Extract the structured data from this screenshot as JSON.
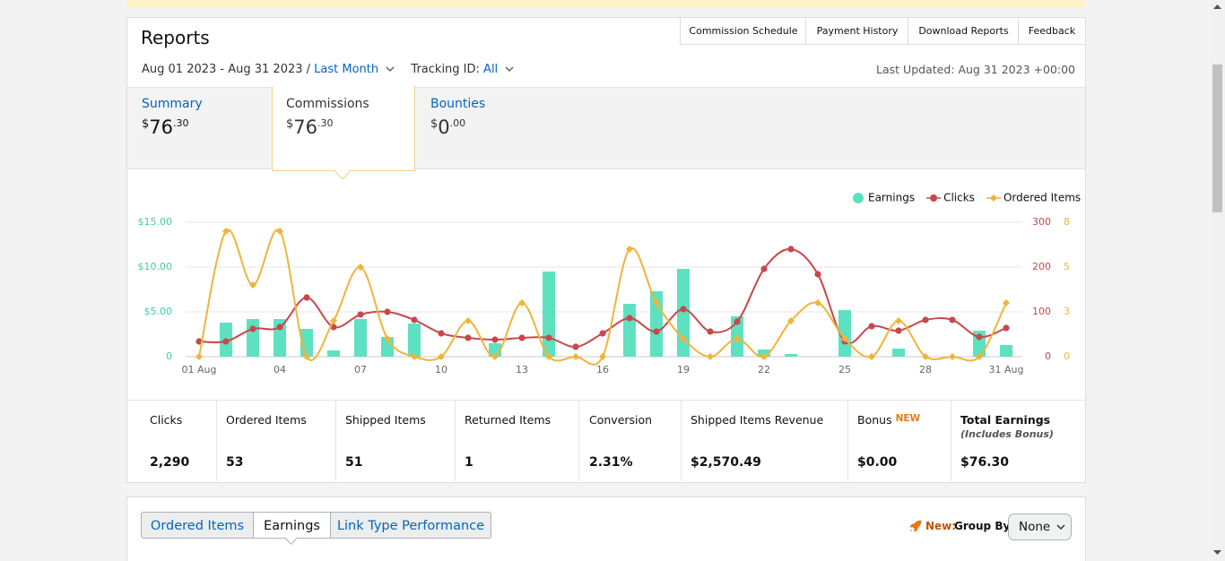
{
  "header": {
    "title": "Reports",
    "buttons": [
      "Commission Schedule",
      "Payment History",
      "Download Reports",
      "Feedback"
    ]
  },
  "filters": {
    "date_range": "Aug 01 2023 - Aug 31 2023 /",
    "period": "Last Month",
    "tracking_label": "Tracking ID:",
    "tracking_value": "All",
    "last_updated": "Last Updated: Aug 31 2023 +00:00"
  },
  "tabs": [
    {
      "name": "Summary",
      "currency": "$",
      "whole": "76",
      "cents": ".30"
    },
    {
      "name": "Commissions",
      "currency": "$",
      "whole": "76",
      "cents": ".30"
    },
    {
      "name": "Bounties",
      "currency": "$",
      "whole": "0",
      "cents": ".00"
    }
  ],
  "chart_data": {
    "type": "combo",
    "categories": [
      "01 Aug",
      null,
      null,
      "04",
      null,
      null,
      "07",
      null,
      null,
      "10",
      null,
      null,
      "13",
      null,
      null,
      "16",
      null,
      null,
      "19",
      null,
      null,
      "22",
      null,
      null,
      "25",
      null,
      null,
      "28",
      null,
      null,
      "31 Aug"
    ],
    "series": [
      {
        "name": "Earnings",
        "type": "bar",
        "color": "#5ee1c1",
        "axis": "y",
        "values": [
          0,
          3.8,
          4.2,
          4.2,
          3.1,
          0.7,
          4.2,
          2.2,
          3.7,
          0,
          0,
          1.5,
          0,
          9.5,
          0,
          0,
          5.9,
          7.3,
          9.8,
          0,
          4.5,
          0.8,
          0.3,
          0,
          5.2,
          0,
          0.9,
          0,
          0,
          2.9,
          1.3
        ]
      },
      {
        "name": "Clicks",
        "type": "line",
        "color": "#c9474b",
        "axis": "y2",
        "values": [
          34,
          34,
          62,
          66,
          132,
          66,
          94,
          100,
          82,
          52,
          42,
          38,
          42,
          42,
          22,
          52,
          86,
          56,
          106,
          56,
          78,
          196,
          240,
          184,
          34,
          68,
          58,
          82,
          82,
          44,
          64
        ]
      },
      {
        "name": "Ordered Items",
        "type": "line",
        "color": "#f0b43a",
        "axis": "y3",
        "values": [
          0,
          7,
          4,
          7,
          0,
          2,
          5,
          1,
          0,
          0,
          2,
          0,
          3,
          0,
          0,
          0,
          6,
          3,
          1,
          0,
          1,
          0,
          2,
          3,
          1,
          0,
          2,
          0,
          0,
          0,
          3
        ]
      }
    ],
    "ylim": [
      0,
      15
    ],
    "yticks": [
      0,
      {
        "value": 5,
        "label": "$5.00"
      },
      {
        "value": 10,
        "label": "$10.00"
      },
      {
        "value": 15,
        "label": "$15.00"
      }
    ],
    "y2lim": [
      0,
      300
    ],
    "y2ticks": [
      0,
      100,
      200,
      300
    ],
    "y3lim": [
      0,
      7.5
    ],
    "y3ticks": [
      0,
      {
        "value": 2.5,
        "label": "3"
      },
      5,
      {
        "value": 7.5,
        "label": "8"
      }
    ],
    "grid": true,
    "legend": "top-right"
  },
  "stats": [
    {
      "label": "Clicks",
      "value": "2,290"
    },
    {
      "label": "Ordered Items",
      "value": "53"
    },
    {
      "label": "Shipped Items",
      "value": "51"
    },
    {
      "label": "Returned Items",
      "value": "1"
    },
    {
      "label": "Conversion",
      "value": "2.31%"
    },
    {
      "label": "Shipped Items Revenue",
      "value": "$2,570.49"
    },
    {
      "label": "Bonus",
      "badge": "NEW",
      "value": "$0.00"
    },
    {
      "label": "Total Earnings",
      "note": "(Includes Bonus)",
      "value": "$76.30"
    }
  ],
  "bottom": {
    "tabs": [
      "Ordered Items",
      "Earnings",
      "Link Type Performance"
    ],
    "new_label": "New:",
    "group_by_label": "Group By:",
    "group_by_value": "None"
  }
}
